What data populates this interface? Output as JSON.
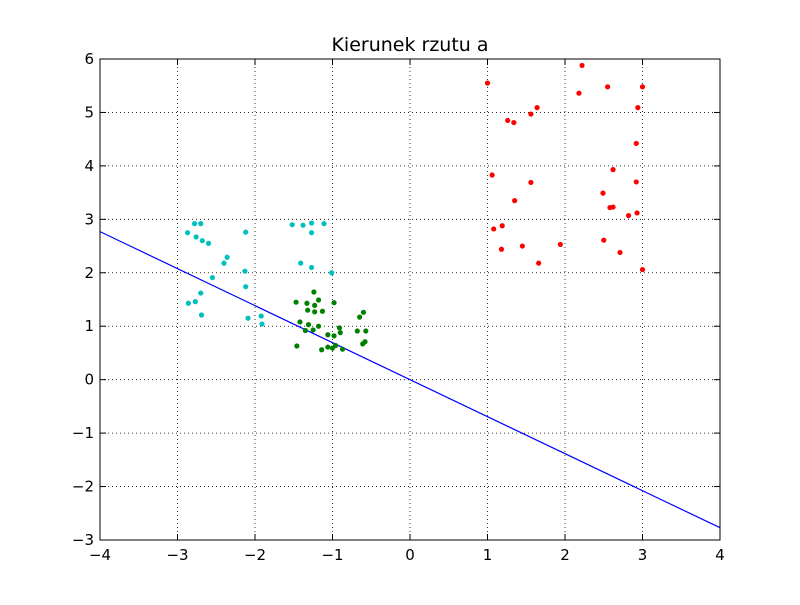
{
  "chart_data": {
    "type": "scatter",
    "title": "Kierunek rzutu a",
    "xlabel": "",
    "ylabel": "",
    "xlim": [
      -4,
      4
    ],
    "ylim": [
      -3,
      6
    ],
    "x_ticks": [
      -4,
      -3,
      -2,
      -1,
      0,
      1,
      2,
      3,
      4
    ],
    "y_ticks": [
      -3,
      -2,
      -1,
      0,
      1,
      2,
      3,
      4,
      5,
      6
    ],
    "x_tick_labels": [
      "−4",
      "−3",
      "−2",
      "−1",
      "0",
      "1",
      "2",
      "3",
      "4"
    ],
    "y_tick_labels": [
      "−3",
      "−2",
      "−1",
      "0",
      "1",
      "2",
      "3",
      "4",
      "5",
      "6"
    ],
    "grid": true,
    "series": [
      {
        "color": "#ff0000",
        "points": [
          [
            1.0,
            5.55
          ],
          [
            2.22,
            5.88
          ],
          [
            2.55,
            5.48
          ],
          [
            3.0,
            5.48
          ],
          [
            2.18,
            5.36
          ],
          [
            1.64,
            5.09
          ],
          [
            1.56,
            4.97
          ],
          [
            1.26,
            4.85
          ],
          [
            1.34,
            4.81
          ],
          [
            2.94,
            5.09
          ],
          [
            2.92,
            4.42
          ],
          [
            2.62,
            3.93
          ],
          [
            1.06,
            3.83
          ],
          [
            1.56,
            3.69
          ],
          [
            2.92,
            3.7
          ],
          [
            2.49,
            3.49
          ],
          [
            1.35,
            3.35
          ],
          [
            2.62,
            3.23
          ],
          [
            2.58,
            3.22
          ],
          [
            2.93,
            3.12
          ],
          [
            2.82,
            3.07
          ],
          [
            1.19,
            2.88
          ],
          [
            1.08,
            2.82
          ],
          [
            2.5,
            2.61
          ],
          [
            1.94,
            2.53
          ],
          [
            1.45,
            2.5
          ],
          [
            1.18,
            2.44
          ],
          [
            2.71,
            2.38
          ],
          [
            1.66,
            2.18
          ],
          [
            3.0,
            2.06
          ]
        ]
      },
      {
        "color": "#00bfbf",
        "points": [
          [
            -2.78,
            2.92
          ],
          [
            -2.7,
            2.92
          ],
          [
            -2.87,
            2.75
          ],
          [
            -2.76,
            2.67
          ],
          [
            -2.68,
            2.6
          ],
          [
            -2.6,
            2.55
          ],
          [
            -2.12,
            2.76
          ],
          [
            -2.36,
            2.29
          ],
          [
            -2.4,
            2.18
          ],
          [
            -2.13,
            2.03
          ],
          [
            -2.55,
            1.91
          ],
          [
            -2.12,
            1.74
          ],
          [
            -2.7,
            1.62
          ],
          [
            -2.77,
            1.46
          ],
          [
            -2.86,
            1.43
          ],
          [
            -2.69,
            1.21
          ],
          [
            -1.92,
            1.19
          ],
          [
            -2.09,
            1.15
          ],
          [
            -1.91,
            1.04
          ],
          [
            -1.52,
            2.9
          ],
          [
            -1.38,
            2.89
          ],
          [
            -1.27,
            2.93
          ],
          [
            -1.11,
            2.92
          ],
          [
            -1.27,
            2.75
          ],
          [
            -1.41,
            2.18
          ],
          [
            -1.27,
            2.1
          ],
          [
            -1.01,
            2.0
          ]
        ]
      },
      {
        "color": "#008000",
        "points": [
          [
            -1.47,
            1.45
          ],
          [
            -1.33,
            1.43
          ],
          [
            -1.18,
            1.49
          ],
          [
            -1.23,
            1.39
          ],
          [
            -0.98,
            1.44
          ],
          [
            -1.23,
            1.27
          ],
          [
            -1.13,
            1.28
          ],
          [
            -1.32,
            1.3
          ],
          [
            -0.6,
            1.26
          ],
          [
            -0.65,
            1.17
          ],
          [
            -1.42,
            1.08
          ],
          [
            -1.31,
            1.03
          ],
          [
            -1.18,
            1.0
          ],
          [
            -0.91,
            0.97
          ],
          [
            -0.9,
            0.88
          ],
          [
            -1.06,
            0.84
          ],
          [
            -0.98,
            0.82
          ],
          [
            -0.68,
            0.91
          ],
          [
            -0.57,
            0.91
          ],
          [
            -1.46,
            0.63
          ],
          [
            -1.14,
            0.56
          ],
          [
            -1.0,
            0.59
          ],
          [
            -0.96,
            0.64
          ],
          [
            -0.87,
            0.57
          ],
          [
            -0.61,
            0.67
          ],
          [
            -0.58,
            0.71
          ],
          [
            -1.06,
            0.61
          ],
          [
            -1.24,
            1.64
          ],
          [
            -1.25,
            0.93
          ],
          [
            -1.35,
            0.92
          ]
        ]
      }
    ],
    "line": {
      "color": "#0000ff",
      "points": [
        [
          -4,
          2.77
        ],
        [
          4,
          -2.77
        ]
      ]
    }
  }
}
